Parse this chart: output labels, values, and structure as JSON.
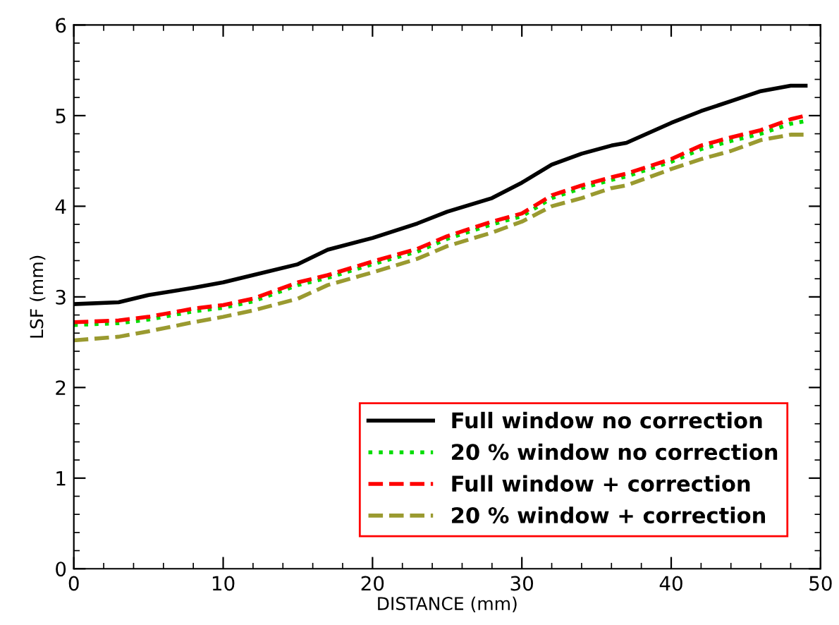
{
  "chart_data": {
    "type": "line",
    "xlabel": "DISTANCE (mm)",
    "ylabel": "LSF (mm)",
    "x": [
      0,
      3,
      5,
      8,
      10,
      12,
      15,
      17,
      20,
      23,
      25,
      28,
      30,
      32,
      34,
      36,
      37,
      40,
      42,
      44,
      46,
      48,
      49
    ],
    "series": [
      {
        "name": "Full window no correction",
        "color": "#000000",
        "line_style": "solid",
        "values": [
          2.92,
          2.94,
          3.02,
          3.1,
          3.16,
          3.24,
          3.36,
          3.52,
          3.65,
          3.81,
          3.94,
          4.09,
          4.26,
          4.46,
          4.58,
          4.67,
          4.7,
          4.92,
          5.05,
          5.16,
          5.27,
          5.33,
          5.33
        ]
      },
      {
        "name": "20 % window no correction",
        "color": "#00dd00",
        "line_style": "dotted",
        "values": [
          2.69,
          2.71,
          2.75,
          2.84,
          2.88,
          2.95,
          3.13,
          3.21,
          3.36,
          3.5,
          3.64,
          3.8,
          3.89,
          4.09,
          4.2,
          4.29,
          4.33,
          4.49,
          4.63,
          4.72,
          4.8,
          4.91,
          4.94
        ]
      },
      {
        "name": "Full window + correction",
        "color": "#ff0000",
        "line_style": "dashed",
        "values": [
          2.72,
          2.74,
          2.78,
          2.87,
          2.91,
          2.98,
          3.16,
          3.24,
          3.39,
          3.53,
          3.67,
          3.83,
          3.92,
          4.12,
          4.23,
          4.32,
          4.36,
          4.52,
          4.67,
          4.76,
          4.84,
          4.96,
          5.0
        ]
      },
      {
        "name": "20 % window + correction",
        "color": "#9a9a30",
        "line_style": "dashed",
        "values": [
          2.52,
          2.56,
          2.62,
          2.72,
          2.78,
          2.85,
          2.98,
          3.13,
          3.27,
          3.42,
          3.56,
          3.71,
          3.83,
          4.0,
          4.09,
          4.2,
          4.23,
          4.41,
          4.52,
          4.61,
          4.73,
          4.79,
          4.79
        ]
      }
    ],
    "xlim": [
      0,
      50
    ],
    "xticks": [
      0,
      10,
      20,
      30,
      40,
      50
    ],
    "ylim": [
      0,
      6
    ],
    "yticks": [
      0,
      1,
      2,
      3,
      4,
      5,
      6
    ],
    "grid": false,
    "legend": "bottom right",
    "marker": "none"
  }
}
